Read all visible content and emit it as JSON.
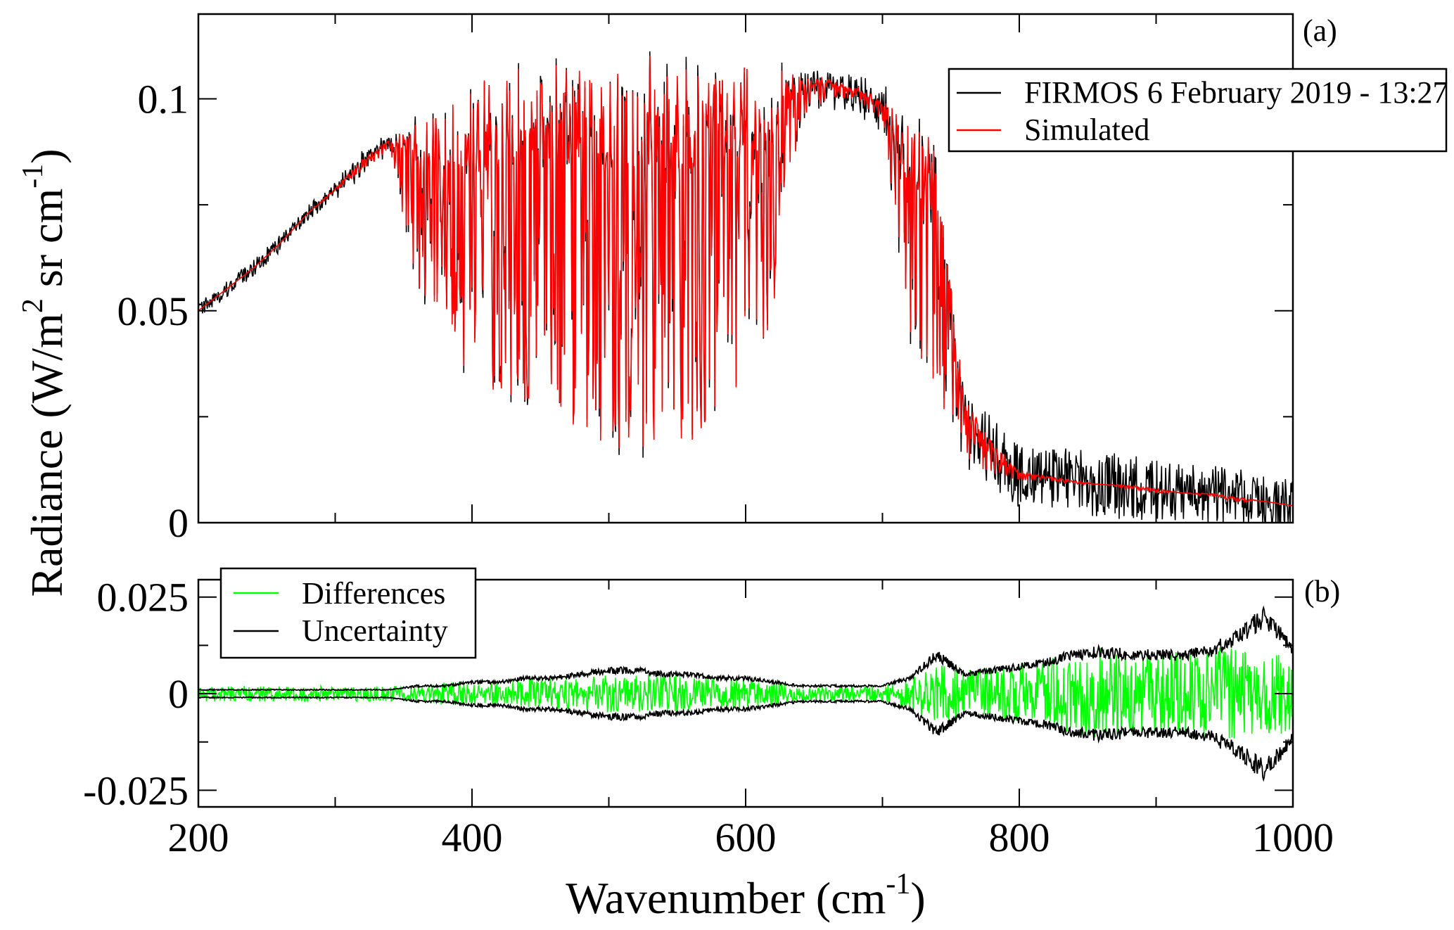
{
  "chart_data": [
    {
      "type": "line",
      "panel_label": "(a)",
      "xlabel": "Wavenumber (cm",
      "xlabel_sup": "-1",
      "xlabel_end": ")",
      "ylabel_parts": [
        "Radiance (W/m",
        "2",
        " sr cm",
        "-1",
        ")"
      ],
      "xlim": [
        200,
        1000
      ],
      "ylim": [
        0,
        0.12
      ],
      "xticks": [
        200,
        400,
        600,
        800,
        1000
      ],
      "yticks": [
        0,
        0.05,
        0.1
      ],
      "ytick_labels": [
        "0",
        "0.05",
        "0.1"
      ],
      "legend_placement": "top-right",
      "x": [
        200,
        220,
        240,
        260,
        280,
        300,
        320,
        340,
        360,
        380,
        400,
        420,
        440,
        460,
        480,
        500,
        520,
        540,
        560,
        580,
        600,
        620,
        640,
        660,
        680,
        700,
        720,
        740,
        760,
        780,
        800,
        820,
        840,
        860,
        880,
        900,
        920,
        940,
        960,
        980,
        1000
      ],
      "series": [
        {
          "name": "FIRMOS 6 February 2019 - 13:27",
          "color": "#000000",
          "note_noise_amplitude": [
            0.002,
            0.002,
            0.002,
            0.002,
            0.002,
            0.002,
            0.002,
            0.002,
            0.002,
            0.002,
            0.002,
            0.002,
            0.002,
            0.002,
            0.002,
            0.003,
            0.003,
            0.003,
            0.003,
            0.003,
            0.003,
            0.003,
            0.003,
            0.003,
            0.004,
            0.004,
            0.004,
            0.004,
            0.005,
            0.006,
            0.007,
            0.007,
            0.008,
            0.008,
            0.008,
            0.007,
            0.007,
            0.007,
            0.007,
            0.006,
            0.006
          ]
        },
        {
          "name": "Simulated",
          "color": "#ff0000",
          "upper_envelope": [
            0.05,
            0.055,
            0.06,
            0.066,
            0.073,
            0.079,
            0.086,
            0.091,
            0.095,
            0.099,
            0.103,
            0.107,
            0.109,
            0.11,
            0.111,
            0.111,
            0.111,
            0.111,
            0.11,
            0.109,
            0.108,
            0.108,
            0.106,
            0.105,
            0.103,
            0.1,
            0.095,
            0.09,
            0.03,
            0.02,
            0.012,
            0.011,
            0.01,
            0.009,
            0.009,
            0.008,
            0.007,
            0.007,
            0.006,
            0.005,
            0.004
          ],
          "lower_envelope": [
            0.05,
            0.055,
            0.06,
            0.066,
            0.073,
            0.078,
            0.083,
            0.088,
            0.055,
            0.045,
            0.033,
            0.03,
            0.028,
            0.025,
            0.02,
            0.017,
            0.018,
            0.017,
            0.018,
            0.022,
            0.035,
            0.045,
            0.095,
            0.1,
            0.1,
            0.095,
            0.04,
            0.03,
            0.012,
            0.011,
            0.01,
            0.01,
            0.009,
            0.009,
            0.008,
            0.007,
            0.007,
            0.006,
            0.005,
            0.005,
            0.004
          ]
        }
      ]
    },
    {
      "type": "line",
      "panel_label": "(b)",
      "xlim": [
        200,
        1000
      ],
      "ylim": [
        -0.0293,
        0.0295
      ],
      "xticks": [
        200,
        400,
        600,
        800,
        1000
      ],
      "xtick_labels": [
        "200",
        "400",
        "600",
        "800",
        "1000"
      ],
      "yticks": [
        -0.025,
        0,
        0.025
      ],
      "ytick_labels": [
        "-0.025",
        "0",
        "0.025"
      ],
      "legend_placement": "top-left",
      "x": [
        200,
        220,
        240,
        260,
        280,
        300,
        320,
        340,
        360,
        380,
        400,
        420,
        440,
        460,
        480,
        500,
        520,
        540,
        560,
        580,
        600,
        620,
        640,
        660,
        680,
        700,
        720,
        740,
        760,
        780,
        800,
        820,
        840,
        860,
        880,
        900,
        920,
        940,
        960,
        980,
        1000
      ],
      "series": [
        {
          "name": "Differences",
          "color": "#00ff00",
          "amplitude": [
            0.002,
            0.002,
            0.002,
            0.002,
            0.002,
            0.002,
            0.002,
            0.002,
            0.002,
            0.003,
            0.003,
            0.003,
            0.004,
            0.004,
            0.004,
            0.005,
            0.005,
            0.005,
            0.005,
            0.004,
            0.004,
            0.003,
            0.002,
            0.002,
            0.002,
            0.002,
            0.004,
            0.008,
            0.006,
            0.007,
            0.008,
            0.009,
            0.011,
            0.012,
            0.011,
            0.011,
            0.011,
            0.012,
            0.012,
            0.011,
            0.01
          ]
        },
        {
          "name": "Uncertainty",
          "color": "#000000",
          "values_pm": [
            0.001,
            0.001,
            0.001,
            0.001,
            0.001,
            0.001,
            0.001,
            0.001,
            0.002,
            0.002,
            0.003,
            0.003,
            0.004,
            0.004,
            0.005,
            0.006,
            0.006,
            0.005,
            0.005,
            0.004,
            0.004,
            0.003,
            0.002,
            0.002,
            0.002,
            0.002,
            0.004,
            0.01,
            0.005,
            0.006,
            0.007,
            0.008,
            0.01,
            0.011,
            0.01,
            0.01,
            0.01,
            0.011,
            0.015,
            0.02,
            0.011
          ]
        }
      ]
    }
  ]
}
